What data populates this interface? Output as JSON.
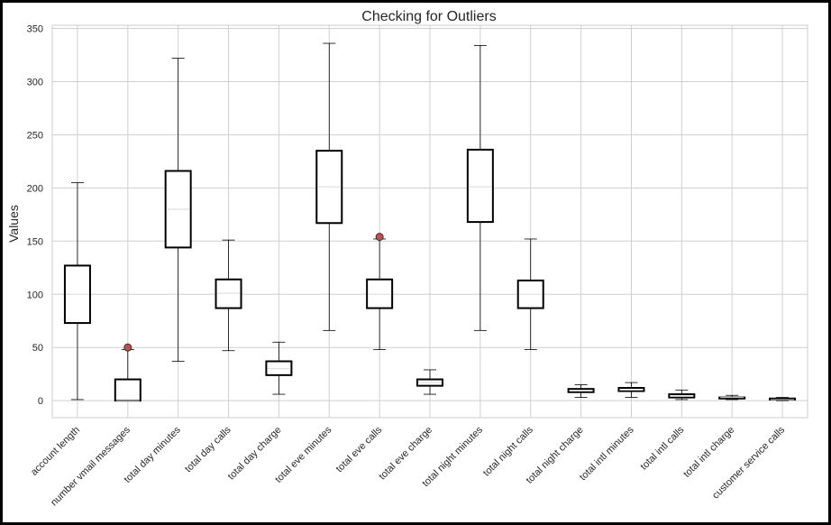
{
  "chart_data": {
    "type": "boxplot",
    "title": "Checking for Outliers",
    "xlabel": "",
    "ylabel": "Values",
    "ylim": [
      -16,
      353
    ],
    "yticks": [
      0,
      50,
      100,
      150,
      200,
      250,
      300,
      350
    ],
    "grid": true,
    "categories": [
      "account length",
      "number vmail messages",
      "total day minutes",
      "total day calls",
      "total day charge",
      "total eve minutes",
      "total eve calls",
      "total eve charge",
      "total night minutes",
      "total night calls",
      "total night charge",
      "total intl minutes",
      "total intl calls",
      "total intl charge",
      "customer service calls"
    ],
    "boxes": [
      {
        "whislo": 1,
        "q1": 73,
        "med": 100,
        "q3": 127,
        "whishi": 205,
        "fliers": []
      },
      {
        "whislo": 0,
        "q1": 0,
        "med": 0,
        "q3": 20,
        "whishi": 48,
        "fliers": [
          50
        ]
      },
      {
        "whislo": 37,
        "q1": 144,
        "med": 180,
        "q3": 216,
        "whishi": 322,
        "fliers": []
      },
      {
        "whislo": 47,
        "q1": 87,
        "med": 101,
        "q3": 114,
        "whishi": 151,
        "fliers": []
      },
      {
        "whislo": 6,
        "q1": 24,
        "med": 30,
        "q3": 37,
        "whishi": 55,
        "fliers": []
      },
      {
        "whislo": 66,
        "q1": 167,
        "med": 201,
        "q3": 235,
        "whishi": 336,
        "fliers": []
      },
      {
        "whislo": 48,
        "q1": 87,
        "med": 100,
        "q3": 114,
        "whishi": 152,
        "fliers": [
          154
        ]
      },
      {
        "whislo": 6,
        "q1": 14,
        "med": 17,
        "q3": 20,
        "whishi": 29,
        "fliers": []
      },
      {
        "whislo": 66,
        "q1": 168,
        "med": 201,
        "q3": 236,
        "whishi": 334,
        "fliers": []
      },
      {
        "whislo": 48,
        "q1": 87,
        "med": 100,
        "q3": 113,
        "whishi": 152,
        "fliers": []
      },
      {
        "whislo": 3,
        "q1": 8,
        "med": 9,
        "q3": 11,
        "whishi": 15,
        "fliers": []
      },
      {
        "whislo": 3,
        "q1": 9,
        "med": 10,
        "q3": 12,
        "whishi": 17,
        "fliers": []
      },
      {
        "whislo": 1,
        "q1": 3,
        "med": 4,
        "q3": 6,
        "whishi": 10,
        "fliers": []
      },
      {
        "whislo": 1,
        "q1": 2,
        "med": 3,
        "q3": 3,
        "whishi": 5,
        "fliers": []
      },
      {
        "whislo": 0,
        "q1": 1,
        "med": 1,
        "q3": 2,
        "whishi": 3,
        "fliers": []
      }
    ],
    "colors": {
      "box": "#000000",
      "median": "#d9d9d9",
      "flier_fill": "#c0504d",
      "flier_edge": "#333333",
      "grid": "#cfcfcf",
      "frame": "#cccccc"
    }
  }
}
